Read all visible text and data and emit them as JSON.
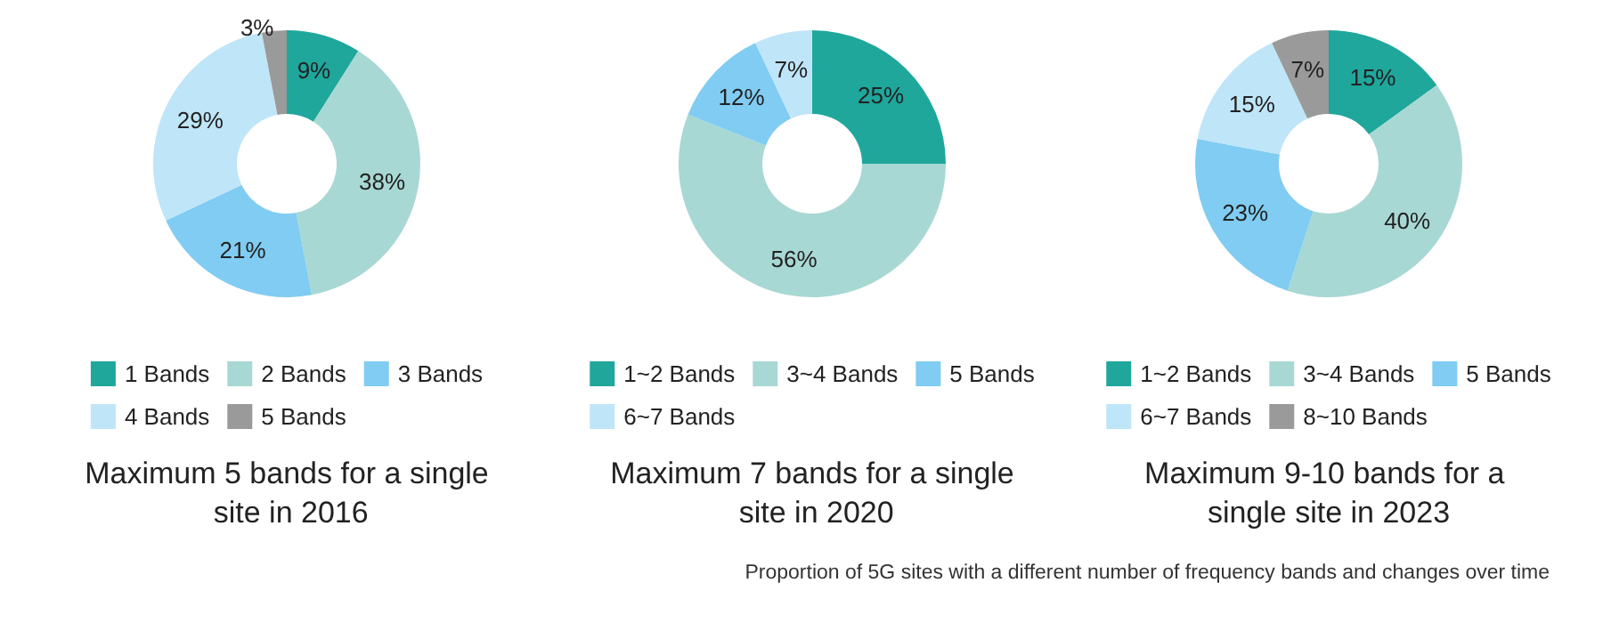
{
  "chart_data": [
    {
      "type": "donut",
      "title": "Maximum 5 bands for a single site in 2016",
      "categories": [
        "1 Bands",
        "2 Bands",
        "3 Bands",
        "4 Bands",
        "5 Bands"
      ],
      "values": [
        9,
        38,
        21,
        29,
        3
      ],
      "colors": [
        "#1fa79c",
        "#a8d8d3",
        "#80ccf2",
        "#bfe5f8",
        "#9a9a9a"
      ],
      "value_labels": [
        "9%",
        "38%",
        "21%",
        "29%",
        "3%"
      ],
      "legend": "bottom"
    },
    {
      "type": "donut",
      "title": "Maximum 7 bands for a single site in 2020",
      "categories": [
        "1~2 Bands",
        "3~4 Bands",
        "5 Bands",
        "6~7 Bands"
      ],
      "values": [
        25,
        56,
        12,
        7
      ],
      "colors": [
        "#1fa79c",
        "#a8d8d3",
        "#80ccf2",
        "#bfe5f8"
      ],
      "value_labels": [
        "25%",
        "56%",
        "12%",
        "7%"
      ],
      "legend": "bottom"
    },
    {
      "type": "donut",
      "title": "Maximum 9-10 bands for a single site in 2023",
      "categories": [
        "1~2 Bands",
        "3~4 Bands",
        "5 Bands",
        "6~7 Bands",
        "8~10 Bands"
      ],
      "values": [
        15,
        40,
        23,
        15,
        7
      ],
      "colors": [
        "#1fa79c",
        "#a8d8d3",
        "#80ccf2",
        "#bfe5f8",
        "#9a9a9a"
      ],
      "value_labels": [
        "15%",
        "40%",
        "23%",
        "15%",
        "7%"
      ],
      "legend": "bottom",
      "annotations": [
        "Proportion of 5G sites with a different number of frequency bands and changes over time"
      ]
    }
  ]
}
